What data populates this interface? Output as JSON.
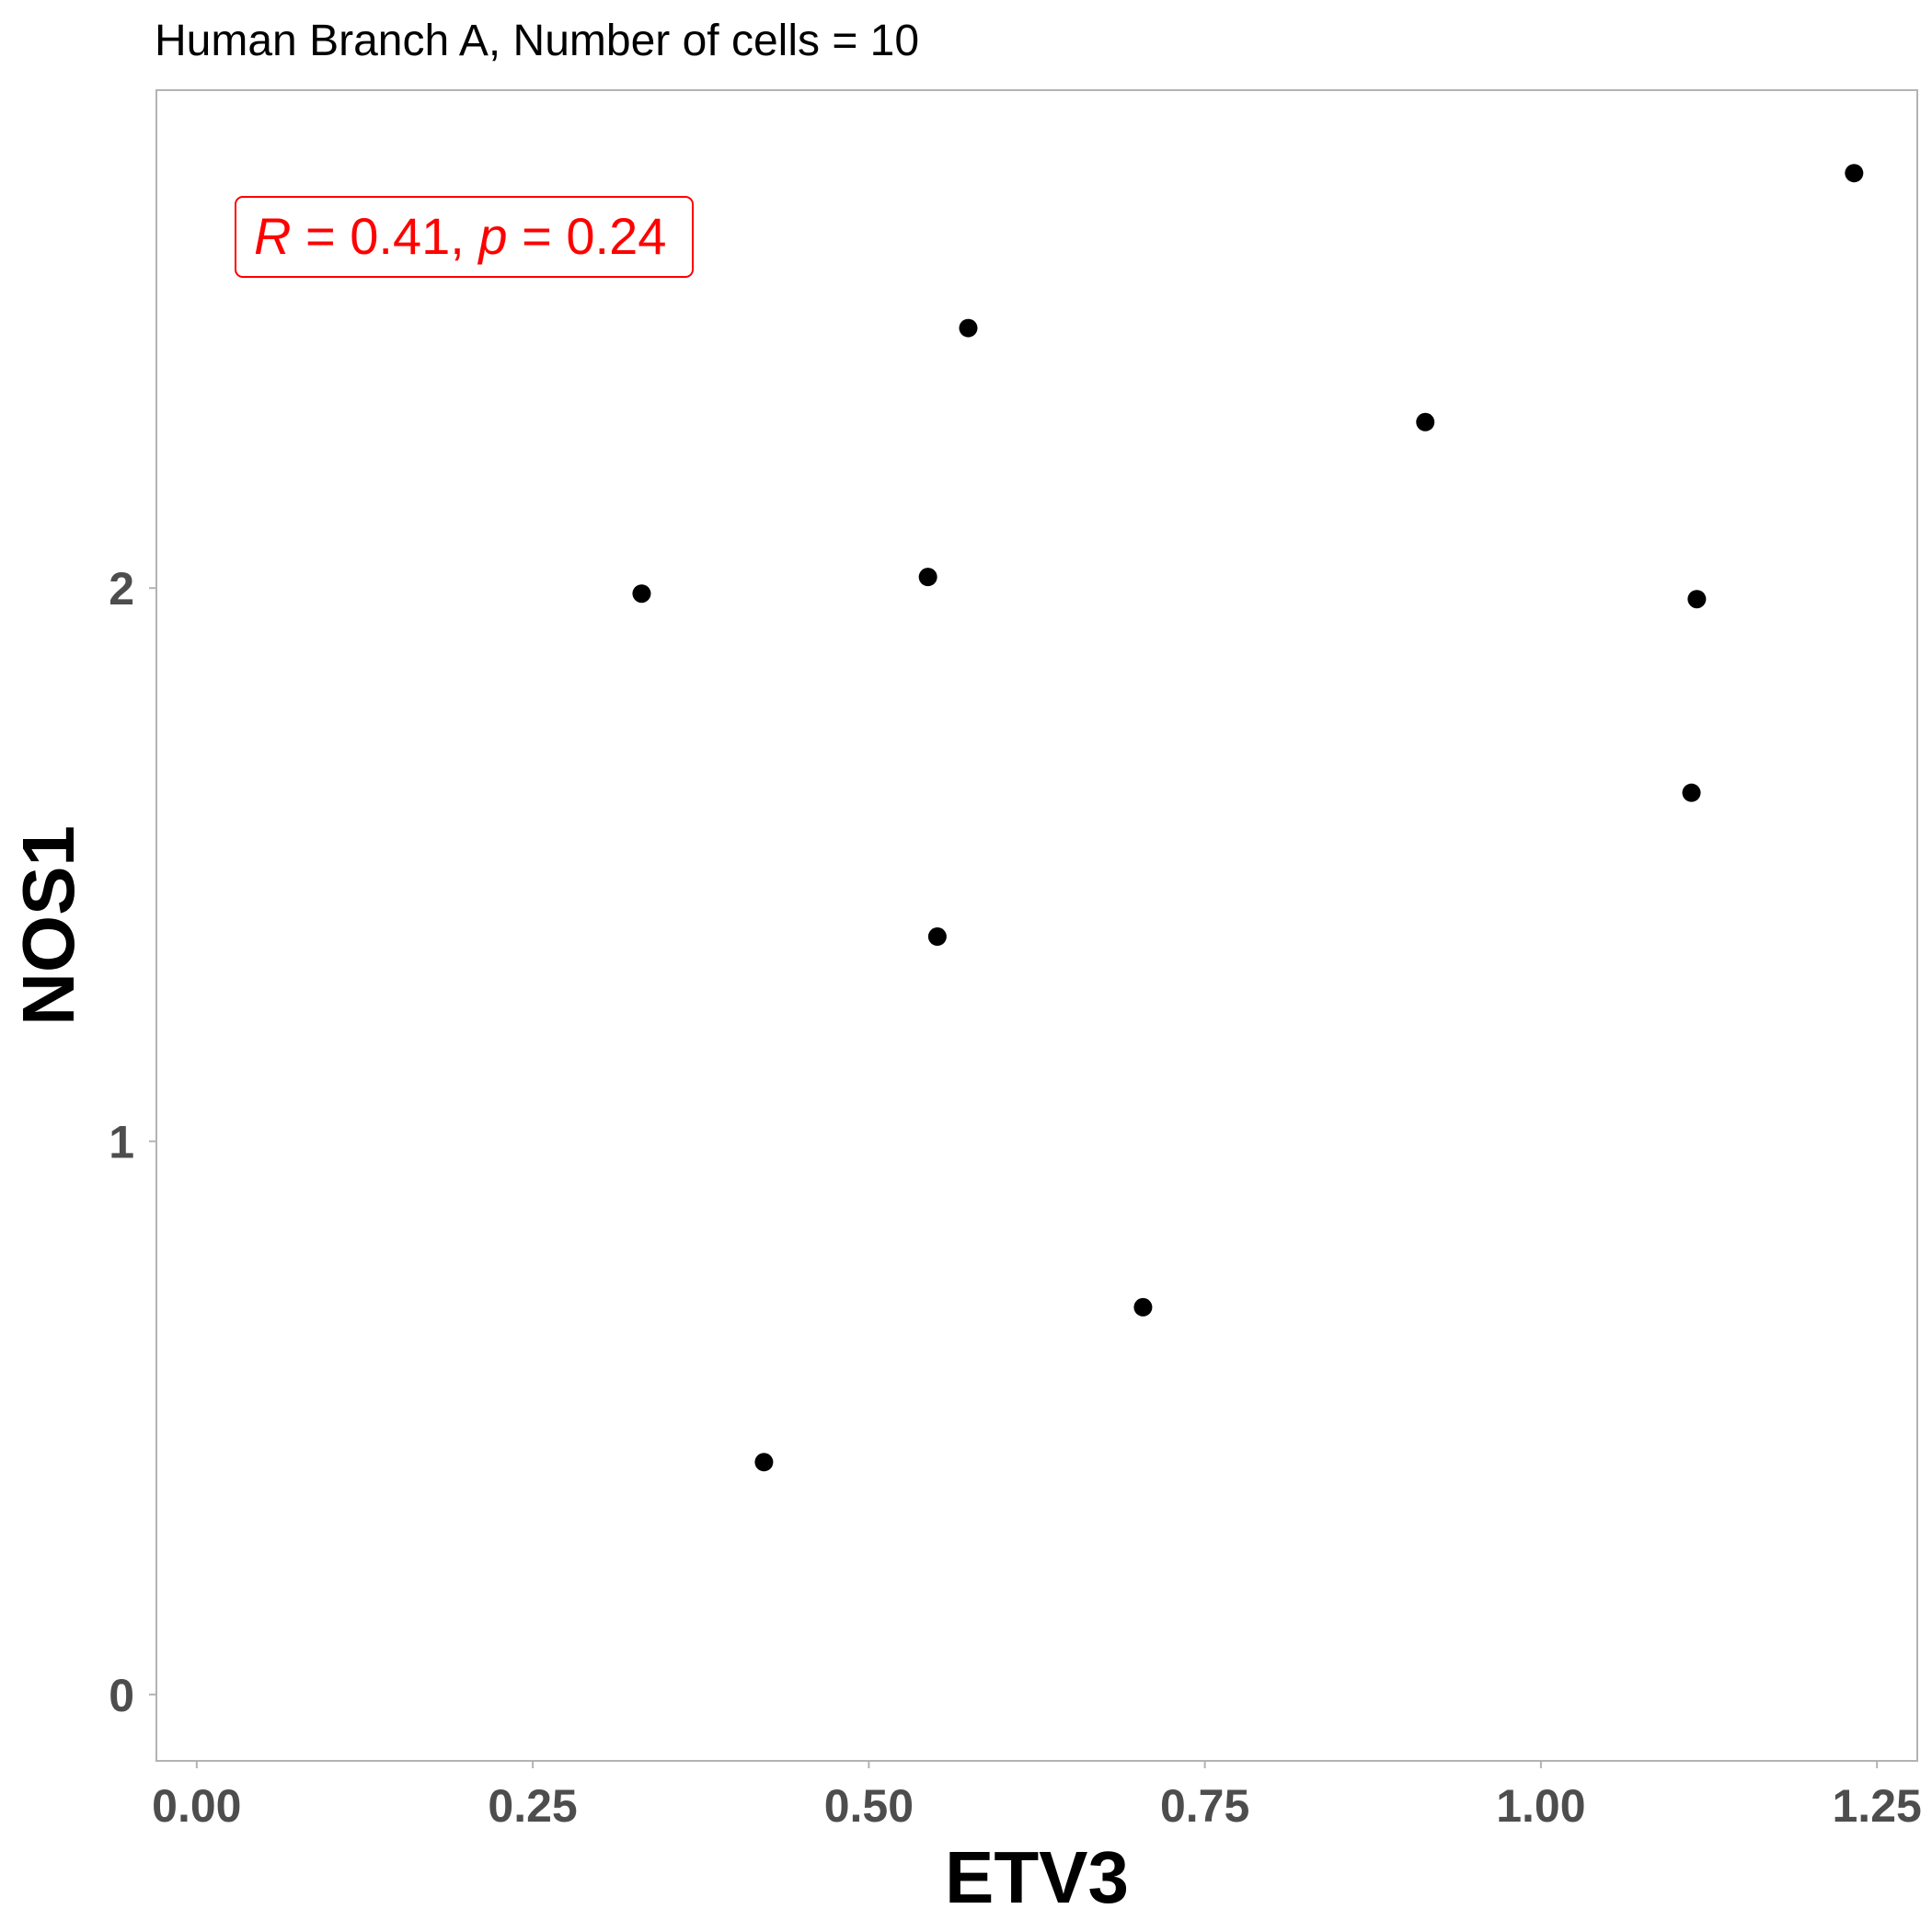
{
  "chart_data": {
    "type": "scatter",
    "title": "Human Branch A, Number of cells = 10",
    "xlabel": "ETV3",
    "ylabel": "NOS1",
    "xlim": [
      -0.03,
      1.28
    ],
    "ylim": [
      -0.12,
      2.9
    ],
    "xticks": [
      0,
      0.25,
      0.5,
      0.75,
      1,
      1.25
    ],
    "xtick_labels": [
      "0.00",
      "0.25",
      "0.50",
      "0.75",
      "1.00",
      "1.25"
    ],
    "yticks": [
      0,
      1,
      2
    ],
    "ytick_labels": [
      "0",
      "1",
      "2"
    ],
    "grid": false,
    "point_color": "#000000",
    "points": [
      {
        "x": 0.331,
        "y": 1.99
      },
      {
        "x": 0.422,
        "y": 0.42
      },
      {
        "x": 0.544,
        "y": 2.02
      },
      {
        "x": 0.551,
        "y": 1.37
      },
      {
        "x": 0.574,
        "y": 2.47
      },
      {
        "x": 0.704,
        "y": 0.7
      },
      {
        "x": 0.914,
        "y": 2.3
      },
      {
        "x": 1.112,
        "y": 1.63
      },
      {
        "x": 1.116,
        "y": 1.98
      },
      {
        "x": 1.233,
        "y": 2.75
      }
    ],
    "annotation": {
      "r_symbol": "R",
      "r_value": "0.41",
      "p_symbol": "p",
      "p_value": "0.24",
      "color": "#ff0000"
    }
  }
}
